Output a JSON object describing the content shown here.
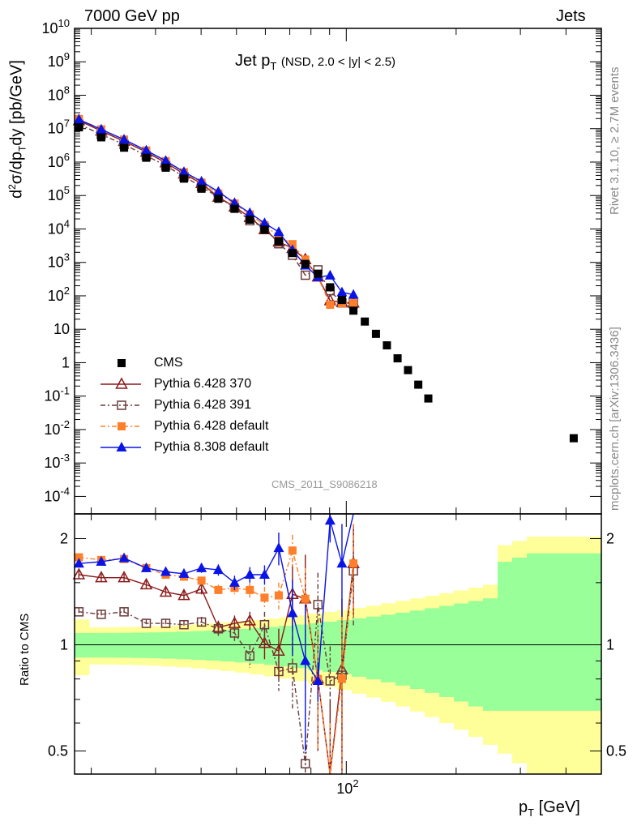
{
  "header": {
    "left": "7000 GeV pp",
    "right": "Jets"
  },
  "title": {
    "main": "Jet p",
    "sub": "T",
    "tail": "(NSD, 2.0 < |y| < 2.5)"
  },
  "axes": {
    "ylabel_top": "d²σ/dp_T dy [pb/GeV]",
    "ylabel_top_parts": {
      "a": "d",
      "b": "2",
      "c": "σ/dp",
      "d": "T",
      "e": "dy [pb/GeV]"
    },
    "ylabel_bottom": "Ratio to CMS",
    "xlabel": "p",
    "xlabel_sub": "T",
    "xlabel_unit": " [GeV]",
    "x_range": [
      18,
      500
    ],
    "y_top_range": [
      3e-05,
      10000000000.0
    ],
    "y_ratio_range": [
      0.43,
      2.35
    ],
    "x_scale": "log",
    "y_top_scale": "log",
    "y_ratio_scale": "log"
  },
  "watermarks": {
    "analysis": "CMS_2011_S9086218",
    "rivet": "Rivet 3.1.10, ≥ 2.7M events",
    "mcplots": "mcplots.cern.ch [arXiv:1306.3436]"
  },
  "legend": [
    {
      "name": "CMS",
      "color": "#000000",
      "marker": "square",
      "dash": ""
    },
    {
      "name": "Pythia 6.428 370",
      "color": "#8b1a1a",
      "marker": "triangle-open",
      "dash": ""
    },
    {
      "name": "Pythia 6.428 391",
      "color": "#6b3a3a",
      "marker": "square-open",
      "dash": "6 3 2 3"
    },
    {
      "name": "Pythia 6.428 default",
      "color": "#ff7f2a",
      "marker": "square",
      "dash": "6 3 2 3"
    },
    {
      "name": "Pythia 8.308 default",
      "color": "#0a14e6",
      "marker": "triangle",
      "dash": ""
    }
  ],
  "chart_data": {
    "type": "line",
    "x": [
      18.5,
      21.3,
      24.6,
      28.3,
      32.0,
      35.9,
      40.1,
      44.6,
      49.4,
      54.4,
      59.7,
      65.3,
      71.2,
      77.2,
      83.6,
      90.3,
      97.3,
      104.6,
      112.4,
      120.6,
      129.2,
      138.2,
      147.6,
      157.5,
      167.8,
      178.5,
      189.7,
      201.4,
      213.6,
      226.2,
      253.3,
      282.3,
      313.5,
      347.0,
      420.0
    ],
    "cms": [
      11000000.0,
      5500000.0,
      2700000.0,
      1350000.0,
      680000.0,
      320000.0,
      160000.0,
      80000.0,
      40000.0,
      19000.0,
      9500.0,
      4300.0,
      1900.0,
      900.0,
      460.0,
      180.0,
      75.0,
      36.0,
      17.0,
      7.3,
      3.3,
      1.35,
      0.6,
      0.22,
      0.085,
      0.0055
    ],
    "cms_x": [
      18.5,
      21.3,
      24.6,
      28.3,
      32.0,
      35.9,
      40.1,
      44.6,
      49.4,
      54.4,
      59.7,
      65.3,
      71.2,
      77.2,
      83.6,
      90.3,
      97.3,
      104.6,
      112.4,
      120.6,
      129.2,
      138.2,
      147.6,
      157.5,
      167.8,
      420.0
    ],
    "series": [
      {
        "name": "Pythia 6.428 370",
        "x": [
          18.5,
          21.3,
          24.6,
          28.3,
          32.0,
          35.9,
          40.1,
          44.6,
          49.4,
          54.4,
          59.7,
          65.3,
          71.2,
          77.2,
          83.6,
          90.3,
          97.3,
          104.6
        ],
        "ratio": [
          1.58,
          1.55,
          1.55,
          1.48,
          1.41,
          1.38,
          1.44,
          1.12,
          1.15,
          1.17,
          1.01,
          0.96,
          1.39,
          1.35,
          0.8,
          0.4,
          0.85,
          1.7
        ],
        "ratio_err": [
          0.04,
          0.04,
          0.04,
          0.04,
          0.04,
          0.04,
          0.05,
          0.05,
          0.06,
          0.07,
          0.1,
          0.15,
          0.3,
          0.45,
          0.3,
          0.3,
          0.5,
          0.5
        ]
      },
      {
        "name": "Pythia 6.428 391",
        "x": [
          18.5,
          21.3,
          24.6,
          28.3,
          32.0,
          35.9,
          40.1,
          44.6,
          49.4,
          54.4,
          59.7,
          65.3,
          71.2,
          77.2,
          83.6,
          90.3,
          97.3,
          104.6
        ],
        "ratio": [
          1.24,
          1.22,
          1.24,
          1.15,
          1.15,
          1.14,
          1.16,
          1.11,
          1.08,
          0.93,
          1.14,
          0.84,
          0.86,
          0.46,
          1.3,
          0.79,
          0.82,
          1.62
        ],
        "ratio_err": [
          0.03,
          0.03,
          0.03,
          0.03,
          0.03,
          0.03,
          0.04,
          0.05,
          0.06,
          0.07,
          0.1,
          0.1,
          0.2,
          0.1,
          0.3,
          0.2,
          0.3,
          0.5
        ]
      },
      {
        "name": "Pythia 6.428 default",
        "x": [
          18.5,
          21.3,
          24.6,
          28.3,
          32.0,
          35.9,
          40.1,
          44.6,
          49.4,
          54.4,
          59.7,
          65.3,
          71.2,
          77.2,
          83.6,
          90.3,
          97.3,
          104.6
        ],
        "ratio": [
          1.77,
          1.74,
          1.75,
          1.65,
          1.58,
          1.56,
          1.52,
          1.43,
          1.45,
          1.43,
          1.36,
          1.38,
          1.85,
          1.35,
          0.8,
          0.3,
          0.8,
          1.7
        ],
        "ratio_err": [
          0.03,
          0.03,
          0.03,
          0.03,
          0.03,
          0.03,
          0.04,
          0.05,
          0.06,
          0.07,
          0.1,
          0.12,
          0.2,
          0.3,
          0.3,
          0.3,
          0.5,
          0.5
        ]
      },
      {
        "name": "Pythia 8.308 default",
        "x": [
          18.5,
          21.3,
          24.6,
          28.3,
          32.0,
          35.9,
          40.1,
          44.6,
          49.4,
          54.4,
          59.7,
          65.3,
          71.2,
          77.2,
          83.6,
          90.3,
          97.3,
          104.6
        ],
        "ratio": [
          1.7,
          1.72,
          1.76,
          1.65,
          1.61,
          1.59,
          1.65,
          1.63,
          1.5,
          1.58,
          1.58,
          1.88,
          1.23,
          0.9,
          0.79,
          2.25,
          1.7,
          3.0
        ],
        "ratio_err": [
          0.04,
          0.04,
          0.04,
          0.04,
          0.04,
          0.04,
          0.05,
          0.06,
          0.07,
          0.08,
          0.1,
          0.2,
          0.3,
          0.4,
          0.1,
          0.3,
          0.5,
          0.5
        ]
      }
    ]
  },
  "colors": {
    "green_band": "#99ff99",
    "yellow_band": "#ffff99",
    "frame": "#000000"
  }
}
